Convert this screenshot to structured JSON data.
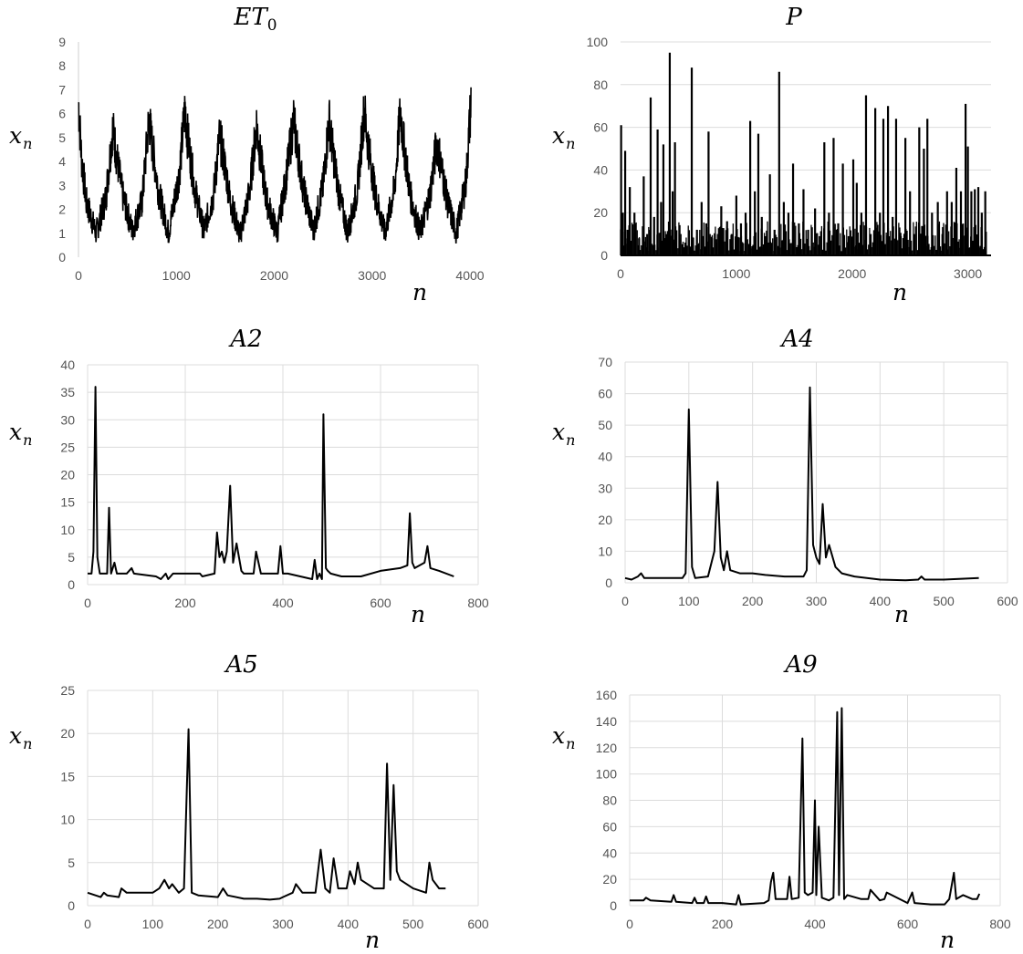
{
  "chart_data": [
    {
      "type": "line",
      "title": "ET",
      "title_sub": "0",
      "xlabel": "n",
      "ylabel": "x",
      "ylabel_sub": "n",
      "xlim": [
        0,
        4000
      ],
      "ylim": [
        0,
        9
      ],
      "xticks": [
        0,
        1000,
        2000,
        3000,
        4000
      ],
      "yticks": [
        0,
        1,
        2,
        3,
        4,
        5,
        6,
        7,
        8,
        9
      ],
      "grid": "none",
      "noisy": true,
      "noise": 0.7,
      "x": [
        0,
        30,
        80,
        180,
        280,
        350,
        380,
        450,
        550,
        650,
        720,
        750,
        820,
        920,
        1030,
        1090,
        1110,
        1190,
        1280,
        1380,
        1440,
        1470,
        1550,
        1650,
        1750,
        1820,
        1840,
        1920,
        2030,
        2120,
        2200,
        2220,
        2300,
        2400,
        2500,
        2560,
        2580,
        2660,
        2750,
        2850,
        2920,
        2950,
        3030,
        3130,
        3230,
        3290,
        3310,
        3390,
        3490,
        3590,
        3660,
        3690,
        3770,
        3860,
        3960,
        4010
      ],
      "values": [
        6.5,
        4.2,
        2.3,
        1.0,
        2.5,
        5.4,
        4.5,
        2.6,
        1.1,
        2.3,
        5.8,
        4.8,
        2.7,
        1.0,
        3.5,
        6.3,
        5.2,
        2.8,
        1.1,
        2.6,
        5.0,
        4.5,
        2.4,
        0.9,
        2.8,
        5.6,
        4.8,
        2.4,
        1.0,
        3.3,
        5.8,
        5.0,
        2.8,
        1.1,
        3.0,
        5.8,
        5.0,
        2.7,
        1.0,
        2.8,
        6.2,
        5.0,
        2.7,
        1.0,
        2.9,
        6.2,
        5.2,
        2.6,
        1.0,
        2.6,
        4.8,
        4.2,
        2.3,
        1.0,
        3.2,
        6.5
      ]
    },
    {
      "type": "bar",
      "title": "P",
      "xlabel": "n",
      "ylabel": "x",
      "ylabel_sub": "n",
      "xlim": [
        0,
        3200
      ],
      "ylim": [
        0,
        100
      ],
      "xticks": [
        0,
        1000,
        2000,
        3000
      ],
      "yticks": [
        0,
        20,
        40,
        60,
        80,
        100
      ],
      "grid": "horizontal",
      "x": [
        5,
        20,
        40,
        60,
        80,
        120,
        160,
        200,
        230,
        260,
        290,
        320,
        350,
        370,
        395,
        425,
        450,
        470,
        510,
        560,
        615,
        660,
        700,
        740,
        760,
        790,
        830,
        870,
        920,
        960,
        1000,
        1040,
        1080,
        1120,
        1160,
        1190,
        1220,
        1250,
        1290,
        1330,
        1370,
        1410,
        1450,
        1490,
        1540,
        1580,
        1620,
        1680,
        1720,
        1760,
        1800,
        1840,
        1880,
        1920,
        1970,
        2010,
        2040,
        2080,
        2120,
        2160,
        2200,
        2240,
        2270,
        2310,
        2350,
        2380,
        2420,
        2460,
        2500,
        2540,
        2580,
        2620,
        2650,
        2690,
        2740,
        2780,
        2820,
        2860,
        2900,
        2940,
        2980,
        3000,
        3030,
        3060,
        3090,
        3120,
        3150
      ],
      "values": [
        61,
        20,
        49,
        12,
        32,
        20,
        8,
        37,
        10,
        74,
        18,
        59,
        25,
        52,
        10,
        95,
        30,
        53,
        8,
        6,
        88,
        12,
        25,
        15,
        58,
        8,
        6,
        23,
        16,
        10,
        28,
        15,
        20,
        63,
        30,
        57,
        18,
        9,
        38,
        12,
        86,
        25,
        20,
        43,
        15,
        31,
        12,
        22,
        9,
        53,
        20,
        55,
        15,
        43,
        9,
        45,
        34,
        20,
        75,
        10,
        69,
        20,
        64,
        70,
        18,
        64,
        9,
        55,
        30,
        10,
        60,
        50,
        64,
        20,
        25,
        10,
        30,
        25,
        41,
        30,
        71,
        51,
        30,
        31,
        32,
        20,
        30
      ]
    },
    {
      "type": "line",
      "title": "A2",
      "xlabel": "n",
      "ylabel": "x",
      "ylabel_sub": "n",
      "xlim": [
        0,
        800
      ],
      "ylim": [
        0,
        40
      ],
      "xticks": [
        0,
        200,
        400,
        600,
        800
      ],
      "yticks": [
        0,
        5,
        10,
        15,
        20,
        25,
        30,
        35,
        40
      ],
      "grid": "both",
      "x": [
        0,
        8,
        12,
        16,
        20,
        25,
        40,
        44,
        48,
        55,
        60,
        80,
        90,
        95,
        140,
        150,
        160,
        165,
        175,
        230,
        235,
        260,
        265,
        270,
        275,
        280,
        285,
        292,
        298,
        305,
        315,
        320,
        340,
        345,
        355,
        390,
        395,
        400,
        410,
        460,
        465,
        470,
        475,
        480,
        483,
        488,
        492,
        498,
        520,
        560,
        600,
        640,
        655,
        660,
        665,
        670,
        690,
        696,
        702,
        720,
        750
      ],
      "values": [
        2,
        2,
        6,
        36,
        5,
        2,
        2,
        14,
        2,
        4,
        2,
        2,
        3,
        2,
        1.5,
        1,
        2,
        1,
        2,
        2,
        1.5,
        2,
        9.5,
        5,
        6,
        4,
        6,
        18,
        4,
        7.5,
        2.5,
        2,
        2,
        6,
        2,
        2,
        7,
        2,
        2,
        1,
        4.5,
        1,
        2,
        1,
        31,
        3,
        2.5,
        2,
        1.5,
        1.5,
        2.5,
        3,
        3.5,
        13,
        4,
        3,
        4,
        7,
        3,
        2.5,
        1.5
      ]
    },
    {
      "type": "line",
      "title": "A4",
      "xlabel": "n",
      "ylabel": "x",
      "ylabel_sub": "n",
      "xlim": [
        0,
        600
      ],
      "ylim": [
        0,
        70
      ],
      "xticks": [
        0,
        100,
        200,
        300,
        400,
        500,
        600
      ],
      "yticks": [
        0,
        10,
        20,
        30,
        40,
        50,
        60,
        70
      ],
      "grid": "both",
      "x": [
        0,
        10,
        20,
        25,
        30,
        60,
        90,
        95,
        100,
        105,
        110,
        130,
        140,
        145,
        150,
        155,
        160,
        165,
        180,
        200,
        220,
        250,
        280,
        285,
        290,
        295,
        300,
        305,
        310,
        315,
        320,
        330,
        340,
        360,
        400,
        440,
        460,
        465,
        470,
        500,
        555
      ],
      "values": [
        1.5,
        1,
        2,
        3,
        1.5,
        1.5,
        1.5,
        3,
        55,
        5,
        1.5,
        2,
        10,
        32,
        8,
        4,
        10,
        4,
        3,
        3,
        2.5,
        2,
        2,
        4,
        62,
        12,
        8,
        6,
        25,
        8,
        12,
        5,
        3,
        2,
        1,
        0.8,
        1,
        2,
        1,
        1,
        1.5
      ]
    },
    {
      "type": "line",
      "title": "A5",
      "xlabel": "n",
      "ylabel": "x",
      "ylabel_sub": "n",
      "xlim": [
        0,
        600
      ],
      "ylim": [
        0,
        25
      ],
      "xticks": [
        0,
        100,
        200,
        300,
        400,
        500,
        600
      ],
      "yticks": [
        0,
        5,
        10,
        15,
        20,
        25
      ],
      "grid": "both",
      "x": [
        0,
        20,
        25,
        30,
        48,
        52,
        60,
        100,
        110,
        118,
        125,
        130,
        140,
        148,
        155,
        160,
        170,
        200,
        208,
        215,
        240,
        260,
        280,
        295,
        300,
        315,
        320,
        330,
        350,
        358,
        365,
        372,
        378,
        385,
        398,
        403,
        410,
        415,
        420,
        440,
        455,
        460,
        465,
        470,
        475,
        480,
        500,
        520,
        525,
        530,
        540,
        550
      ],
      "values": [
        1.5,
        1,
        1.5,
        1.2,
        1,
        2,
        1.5,
        1.5,
        2,
        3,
        2,
        2.5,
        1.5,
        2,
        20.5,
        1.5,
        1.2,
        1,
        2,
        1.2,
        0.8,
        0.8,
        0.7,
        0.8,
        1,
        1.5,
        2.5,
        1.5,
        1.5,
        6.5,
        2,
        1.5,
        5.5,
        2,
        2,
        4,
        2.5,
        5,
        3,
        2,
        2,
        16.5,
        3,
        14,
        4,
        3,
        2,
        1.5,
        5,
        3,
        2,
        2
      ]
    },
    {
      "type": "line",
      "title": "A9",
      "xlabel": "n",
      "ylabel": "x",
      "ylabel_sub": "n",
      "xlim": [
        0,
        800
      ],
      "ylim": [
        0,
        160
      ],
      "xticks": [
        0,
        200,
        400,
        600,
        800
      ],
      "yticks": [
        0,
        20,
        40,
        60,
        80,
        100,
        120,
        140,
        160
      ],
      "grid": "both",
      "x": [
        0,
        30,
        35,
        45,
        90,
        95,
        100,
        135,
        140,
        145,
        160,
        165,
        170,
        200,
        230,
        235,
        240,
        290,
        300,
        305,
        310,
        315,
        340,
        345,
        350,
        365,
        373,
        378,
        385,
        395,
        400,
        403,
        408,
        415,
        430,
        440,
        448,
        452,
        458,
        463,
        470,
        500,
        515,
        520,
        540,
        550,
        555,
        600,
        610,
        615,
        650,
        680,
        690,
        700,
        705,
        720,
        740,
        750,
        755
      ],
      "values": [
        4,
        4,
        6,
        4,
        3,
        8,
        3,
        2,
        6,
        2,
        2,
        7,
        2,
        2,
        1,
        8,
        1,
        2,
        4,
        18,
        25,
        5,
        5,
        22,
        5,
        6,
        127,
        10,
        8,
        10,
        80,
        8,
        60,
        6,
        4,
        6,
        147,
        8,
        150,
        5,
        8,
        5,
        5,
        12,
        4,
        5,
        10,
        2,
        10,
        2,
        1,
        1,
        5,
        25,
        5,
        8,
        5,
        5,
        9
      ]
    }
  ]
}
